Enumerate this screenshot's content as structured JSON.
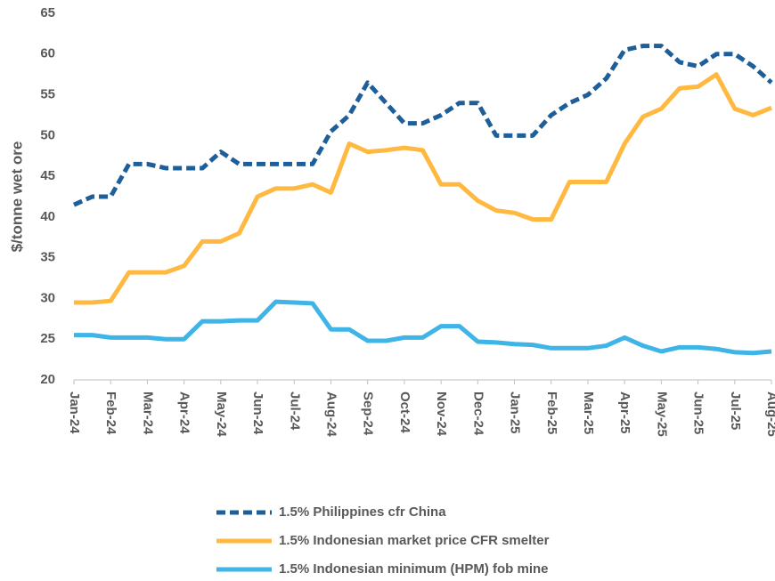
{
  "chart_data": {
    "type": "line",
    "y_label": "$/tonne wet ore",
    "categories": [
      "Jan-24",
      null,
      "Feb-24",
      null,
      "Mar-24",
      null,
      "Apr-24",
      null,
      "May-24",
      null,
      "Jun-24",
      null,
      "Jul-24",
      null,
      "Aug-24",
      null,
      "Sep-24",
      null,
      "Oct-24",
      null,
      "Nov-24",
      null,
      "Dec-24",
      null,
      "Jan-25",
      null,
      "Feb-25",
      null,
      "Mar-25",
      null,
      "Apr-25",
      null,
      "May-25",
      null,
      "Jun-25",
      null,
      "Jul-25",
      null,
      "Aug-25"
    ],
    "series": [
      {
        "name": "1.5% Philippines cfr China",
        "color": "#1f5f99",
        "dashed": true,
        "values": [
          41.5,
          42.5,
          42.5,
          46.5,
          46.5,
          46,
          46,
          46,
          48,
          46.5,
          46.5,
          46.5,
          46.5,
          46.5,
          50.5,
          52.5,
          56.5,
          54,
          51.5,
          51.5,
          52.5,
          54,
          54,
          50,
          50,
          50,
          52.5,
          54,
          55,
          57,
          60.5,
          61,
          61,
          59,
          58.5,
          60,
          60,
          58.5,
          56.5
        ]
      },
      {
        "name": "1.5% Indonesian market price CFR smelter",
        "color": "#ffb840",
        "dashed": false,
        "values": [
          29.5,
          29.5,
          29.7,
          33.2,
          33.2,
          33.2,
          34,
          37,
          37,
          38,
          42.5,
          43.5,
          43.5,
          44,
          43,
          49,
          48,
          48.2,
          48.5,
          48.2,
          44,
          44,
          42,
          40.8,
          40.5,
          39.7,
          39.7,
          44.3,
          44.3,
          44.3,
          49,
          52.3,
          53.3,
          55.8,
          56,
          57.5,
          53.3,
          52.5,
          53.4
        ]
      },
      {
        "name": "1.5% Indonesian minimum (HPM) fob mine",
        "color": "#3fb4e6",
        "dashed": false,
        "values": [
          25.5,
          25.5,
          25.2,
          25.2,
          25.2,
          25,
          25,
          27.2,
          27.2,
          27.3,
          27.3,
          29.6,
          29.5,
          29.4,
          26.2,
          26.2,
          24.8,
          24.8,
          25.2,
          25.2,
          26.6,
          26.6,
          24.7,
          24.6,
          24.4,
          24.3,
          23.9,
          23.9,
          23.9,
          24.2,
          25.2,
          24.2,
          23.5,
          24,
          24,
          23.8,
          23.4,
          23.3,
          23.5
        ]
      }
    ],
    "ylim": [
      20,
      65
    ],
    "yticks": [
      20,
      25,
      30,
      35,
      40,
      45,
      50,
      55,
      60,
      65
    ],
    "grid": false
  }
}
